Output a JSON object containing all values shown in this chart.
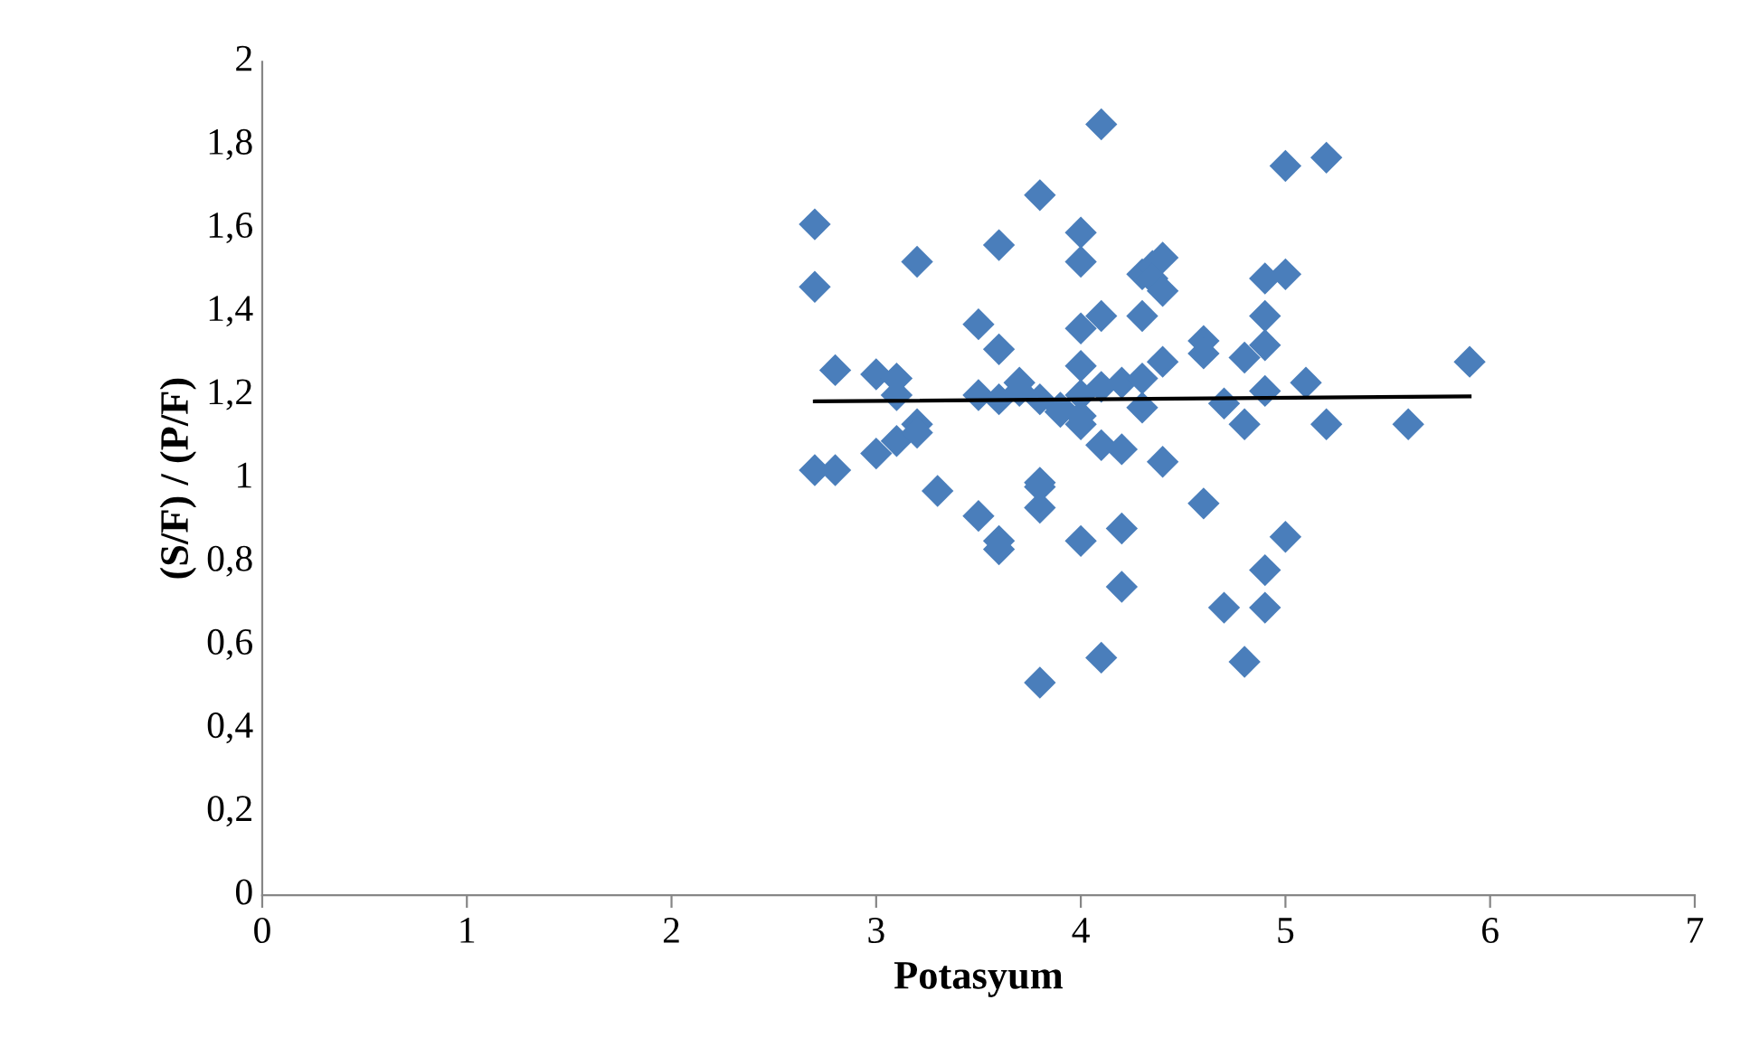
{
  "chart_data": {
    "type": "scatter",
    "xlabel": "Potasyum",
    "ylabel": "(S/F) / (P/F)",
    "xlim": [
      0,
      7
    ],
    "xticks": [
      0,
      1,
      2,
      3,
      4,
      5,
      6,
      7
    ],
    "ylim": [
      0,
      2
    ],
    "yticks": [
      0,
      {
        "value": 0.2,
        "label": "0,2"
      },
      {
        "value": 0.4,
        "label": "0,4"
      },
      {
        "value": 0.6,
        "label": "0,6"
      },
      {
        "value": 0.8,
        "label": "0,8"
      },
      1,
      {
        "value": 1.2,
        "label": "1,2"
      },
      {
        "value": 1.4,
        "label": "1,4"
      },
      {
        "value": 1.6,
        "label": "1,6"
      },
      {
        "value": 1.8,
        "label": "1,8"
      },
      2
    ],
    "grid": false,
    "legend": false,
    "series": [
      {
        "color": "#4a7ebb",
        "marker": "diamond",
        "x": [
          2.7,
          2.7,
          2.7,
          2.8,
          2.8,
          3.0,
          3.0,
          3.1,
          3.1,
          3.1,
          3.2,
          3.2,
          3.2,
          3.3,
          3.5,
          3.5,
          3.5,
          3.6,
          3.6,
          3.6,
          3.6,
          3.6,
          3.7,
          3.7,
          3.8,
          3.8,
          3.8,
          3.8,
          3.8,
          3.8,
          3.9,
          3.9,
          4.0,
          4.0,
          4.0,
          4.0,
          4.0,
          4.0,
          4.0,
          4.0,
          4.1,
          4.1,
          4.1,
          4.1,
          4.1,
          4.2,
          4.2,
          4.2,
          4.2,
          4.3,
          4.3,
          4.3,
          4.3,
          4.35,
          4.35,
          4.4,
          4.4,
          4.4,
          4.4,
          4.6,
          4.6,
          4.6,
          4.7,
          4.7,
          4.8,
          4.8,
          4.8,
          4.9,
          4.9,
          4.9,
          4.9,
          4.9,
          4.9,
          5.0,
          5.0,
          5.0,
          5.1,
          5.2,
          5.2,
          5.6,
          5.9
        ],
        "values": [
          1.61,
          1.46,
          1.02,
          1.26,
          1.02,
          1.25,
          1.06,
          1.24,
          1.2,
          1.09,
          1.52,
          1.13,
          1.11,
          0.97,
          1.37,
          1.2,
          0.91,
          1.56,
          1.31,
          1.19,
          0.85,
          0.83,
          1.23,
          1.21,
          1.68,
          1.19,
          0.99,
          0.98,
          0.93,
          0.51,
          1.17,
          1.16,
          1.59,
          1.52,
          1.36,
          1.27,
          1.2,
          1.15,
          1.13,
          0.85,
          1.85,
          1.39,
          1.22,
          1.08,
          0.57,
          1.23,
          1.07,
          0.88,
          0.74,
          1.49,
          1.39,
          1.24,
          1.17,
          1.51,
          1.48,
          1.53,
          1.45,
          1.28,
          1.04,
          1.33,
          1.3,
          0.94,
          1.18,
          0.69,
          1.29,
          1.13,
          0.56,
          1.48,
          1.39,
          1.32,
          1.21,
          0.78,
          0.69,
          1.75,
          1.49,
          0.86,
          1.23,
          1.77,
          1.13,
          1.13,
          1.28
        ]
      },
      {
        "type": "line",
        "color": "#000000",
        "marker": "none",
        "line_style": "solid",
        "x": [
          2.7,
          5.9
        ],
        "values": [
          1.185,
          1.197
        ]
      }
    ]
  }
}
